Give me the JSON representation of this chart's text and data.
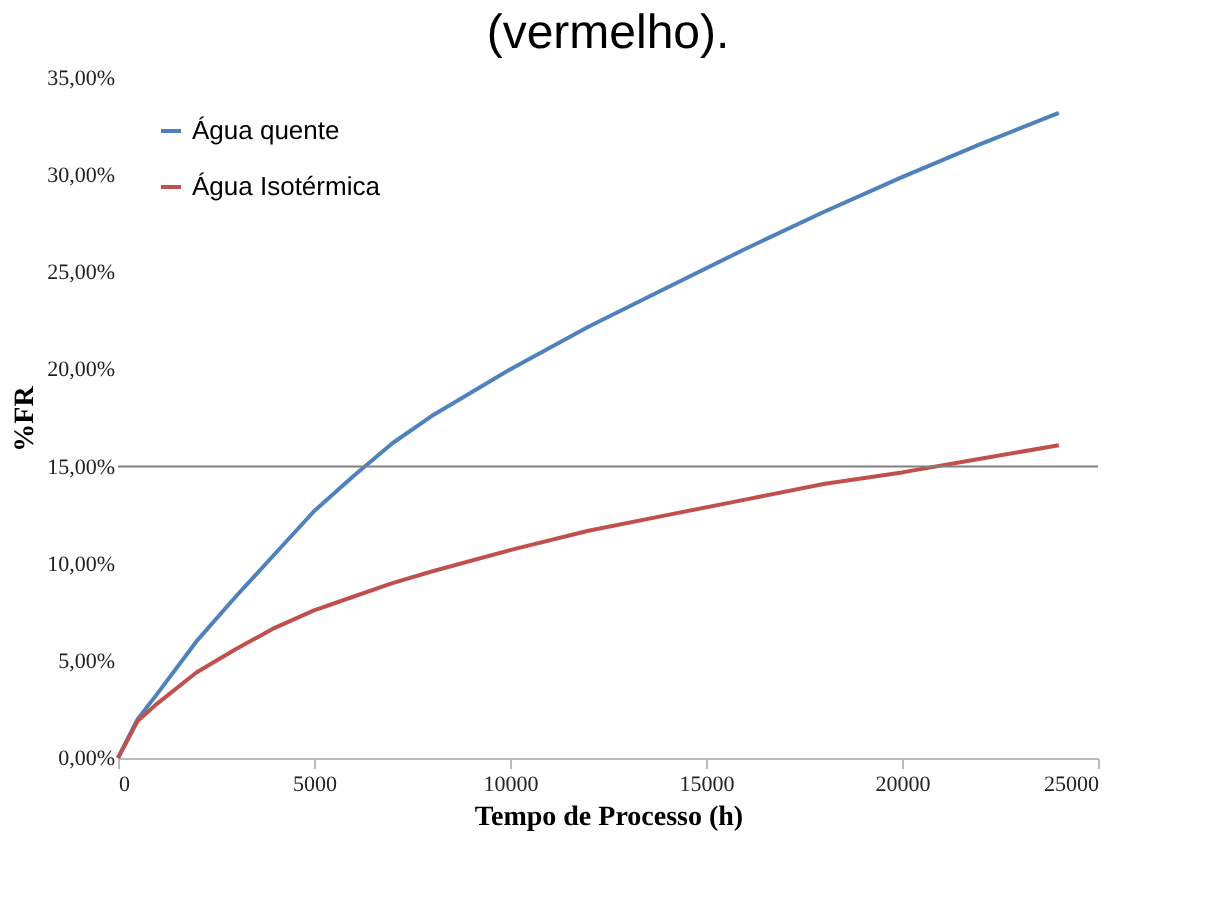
{
  "chart_data": {
    "type": "line",
    "xlabel": "Tempo de Processo (h)",
    "ylabel": "%FR",
    "annotations": [
      "(vermelho)."
    ],
    "x": [
      0,
      500,
      1000,
      2000,
      3000,
      4000,
      5000,
      6000,
      7000,
      8000,
      10000,
      12000,
      14000,
      16000,
      18000,
      20000,
      22000,
      24000
    ],
    "series": [
      {
        "name": "Água quente",
        "color": "#4f81bd",
        "values": [
          0,
          2.0,
          3.3,
          6.0,
          8.3,
          10.5,
          12.7,
          14.5,
          16.2,
          17.6,
          20.0,
          22.2,
          24.2,
          26.2,
          28.1,
          29.9,
          31.6,
          33.2
        ]
      },
      {
        "name": "Água Isotérmica",
        "color": "#c0504d",
        "values": [
          0,
          1.9,
          2.8,
          4.4,
          5.6,
          6.7,
          7.6,
          8.3,
          9.0,
          9.6,
          10.7,
          11.7,
          12.5,
          13.3,
          14.1,
          14.7,
          15.4,
          16.1
        ]
      }
    ],
    "xlim": [
      0,
      25000
    ],
    "xticks": [
      0,
      5000,
      10000,
      15000,
      20000,
      25000
    ],
    "ylim": [
      0,
      35
    ],
    "yticks": [
      {
        "value": 0,
        "label": "0,00%"
      },
      {
        "value": 5,
        "label": "5,00%"
      },
      {
        "value": 10,
        "label": "10,00%"
      },
      {
        "value": 15,
        "label": "15,00%"
      },
      {
        "value": 20,
        "label": "20,00%"
      },
      {
        "value": 25,
        "label": "25,00%"
      },
      {
        "value": 30,
        "label": "30,00%"
      },
      {
        "value": 35,
        "label": "35,00%"
      }
    ],
    "ref_lines": [
      {
        "axis": "y",
        "value": 15,
        "color": "#808080"
      }
    ],
    "grid": false,
    "legend": "top left",
    "line_style": "solid",
    "marker": "none"
  }
}
